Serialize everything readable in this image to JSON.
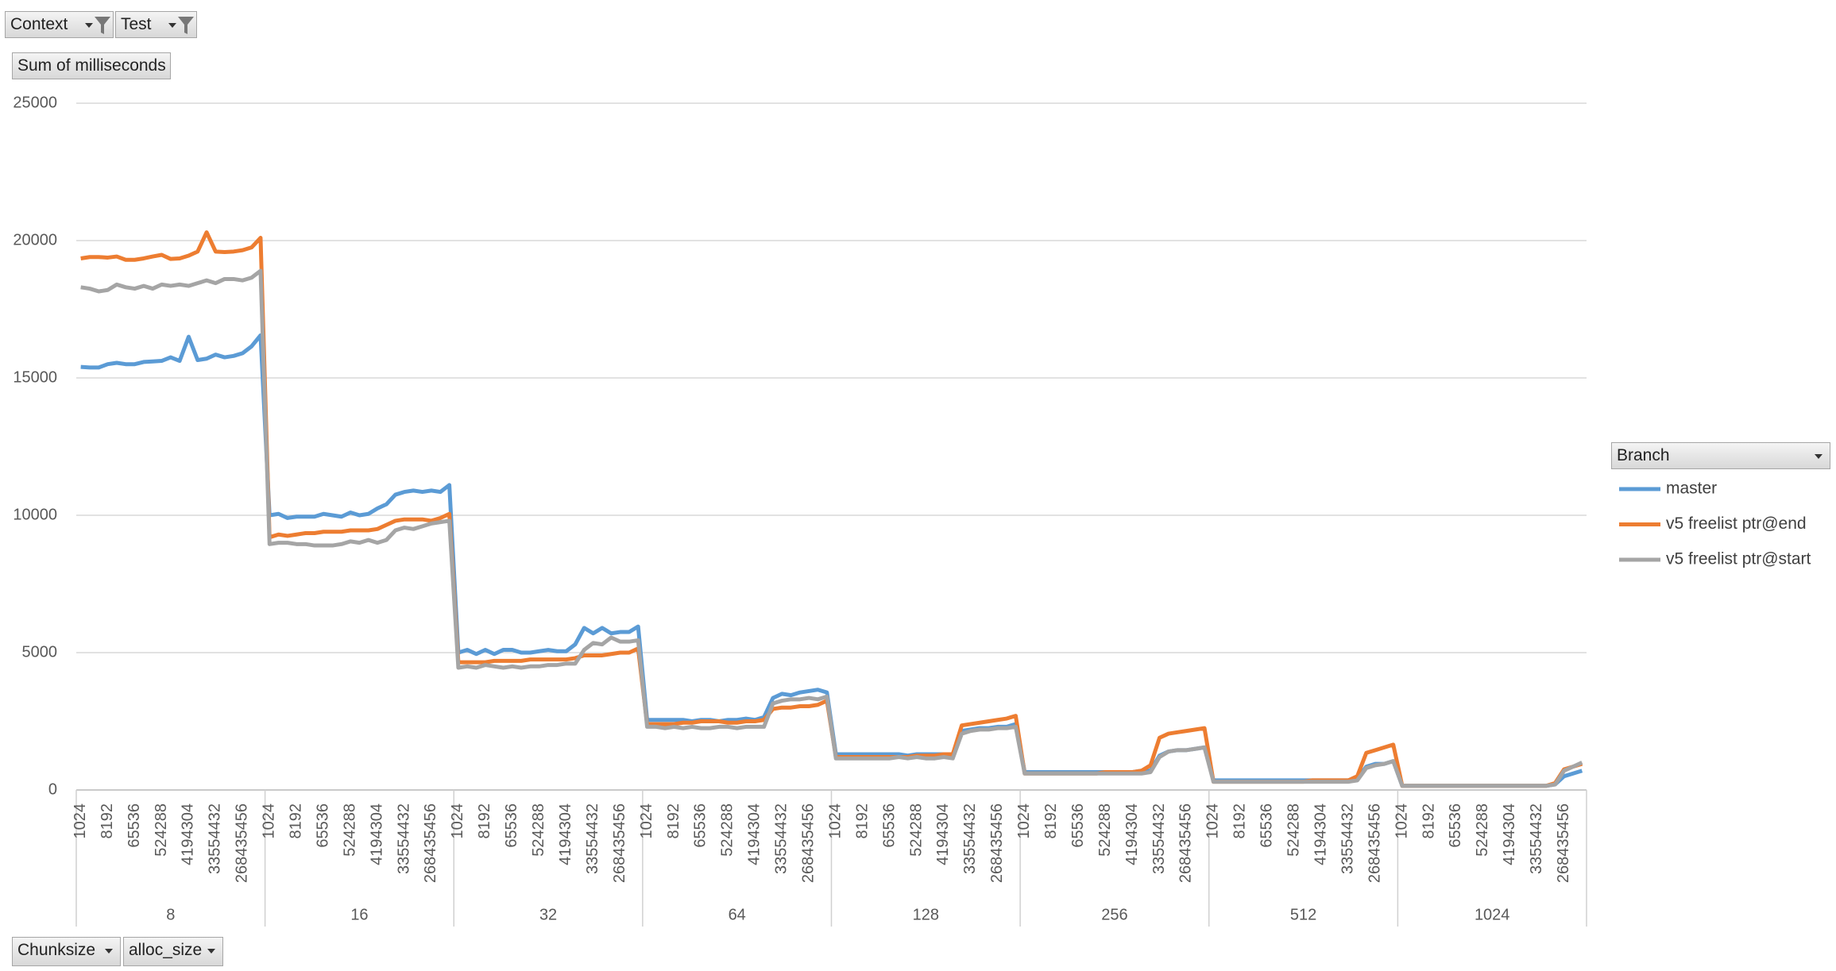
{
  "chart_data": {
    "type": "line",
    "filters": [
      "Context",
      "Test"
    ],
    "value_field": "Sum of milliseconds",
    "axis_fields": [
      "Chunksize",
      "alloc_size"
    ],
    "legend_title": "Branch",
    "groups": [
      "8",
      "16",
      "32",
      "64",
      "128",
      "256",
      "512",
      "1024"
    ],
    "alloc_sizes": [
      "1024",
      null,
      null,
      "8192",
      null,
      null,
      "65536",
      null,
      null,
      "524288",
      null,
      null,
      "4194304",
      null,
      null,
      "33554432",
      null,
      null,
      "268435456",
      null,
      null
    ],
    "ylim": [
      0,
      25000
    ],
    "yticks": [
      0,
      5000,
      10000,
      15000,
      20000,
      25000
    ],
    "grid": true,
    "legend": "right",
    "series": [
      {
        "name": "master",
        "color": "#5b9bd5",
        "values": [
          15400,
          15380,
          15380,
          15500,
          15550,
          15500,
          15500,
          15580,
          15600,
          15620,
          15750,
          15620,
          16500,
          15650,
          15700,
          15850,
          15750,
          15800,
          15900,
          16150,
          16550,
          10000,
          10050,
          9900,
          9950,
          9950,
          9950,
          10050,
          10000,
          9950,
          10100,
          10000,
          10050,
          10250,
          10400,
          10750,
          10850,
          10900,
          10850,
          10900,
          10850,
          11100,
          5000,
          5100,
          4950,
          5100,
          4950,
          5100,
          5100,
          5000,
          5000,
          5050,
          5100,
          5050,
          5050,
          5300,
          5900,
          5700,
          5900,
          5700,
          5750,
          5750,
          5950,
          2550,
          2550,
          2550,
          2550,
          2550,
          2500,
          2550,
          2550,
          2500,
          2550,
          2550,
          2600,
          2550,
          2650,
          3350,
          3500,
          3450,
          3550,
          3600,
          3650,
          3550,
          1300,
          1300,
          1300,
          1300,
          1300,
          1300,
          1300,
          1300,
          1250,
          1300,
          1300,
          1300,
          1300,
          1300,
          2150,
          2200,
          2250,
          2250,
          2300,
          2300,
          2400,
          650,
          650,
          650,
          650,
          650,
          650,
          650,
          650,
          650,
          650,
          650,
          650,
          650,
          700,
          700,
          1250,
          1400,
          1450,
          1450,
          1500,
          1550,
          350,
          350,
          350,
          350,
          350,
          350,
          350,
          350,
          350,
          350,
          350,
          350,
          350,
          350,
          350,
          350,
          400,
          850,
          950,
          950,
          1050,
          150,
          150,
          150,
          150,
          150,
          150,
          150,
          150,
          150,
          150,
          150,
          150,
          150,
          150,
          150,
          150,
          150,
          200,
          500,
          600,
          700
        ]
      },
      {
        "name": "v5 freelist ptr@end",
        "color": "#ed7d31",
        "values": [
          19350,
          19400,
          19400,
          19380,
          19420,
          19300,
          19300,
          19350,
          19420,
          19480,
          19330,
          19350,
          19450,
          19600,
          20300,
          19600,
          19580,
          19600,
          19650,
          19750,
          20100,
          9200,
          9300,
          9250,
          9300,
          9350,
          9350,
          9400,
          9400,
          9400,
          9450,
          9450,
          9450,
          9500,
          9650,
          9800,
          9850,
          9850,
          9850,
          9800,
          9900,
          10050,
          4650,
          4650,
          4650,
          4650,
          4700,
          4700,
          4700,
          4700,
          4750,
          4750,
          4750,
          4750,
          4750,
          4800,
          4900,
          4900,
          4900,
          4950,
          5000,
          5000,
          5150,
          2400,
          2400,
          2400,
          2400,
          2450,
          2450,
          2500,
          2500,
          2500,
          2450,
          2450,
          2500,
          2500,
          2550,
          2950,
          3000,
          3000,
          3050,
          3050,
          3100,
          3250,
          1200,
          1200,
          1200,
          1200,
          1200,
          1200,
          1200,
          1200,
          1200,
          1250,
          1250,
          1250,
          1300,
          1300,
          2350,
          2400,
          2450,
          2500,
          2550,
          2600,
          2700,
          600,
          600,
          600,
          600,
          600,
          600,
          600,
          600,
          600,
          650,
          650,
          650,
          650,
          700,
          900,
          1900,
          2050,
          2100,
          2150,
          2200,
          2250,
          300,
          300,
          300,
          300,
          300,
          300,
          300,
          300,
          300,
          300,
          300,
          350,
          350,
          350,
          350,
          350,
          500,
          1350,
          1450,
          1550,
          1650,
          150,
          150,
          150,
          150,
          150,
          150,
          150,
          150,
          150,
          150,
          150,
          150,
          150,
          150,
          150,
          150,
          150,
          250,
          750,
          850,
          950
        ]
      },
      {
        "name": "v5 freelist ptr@start",
        "color": "#a5a5a5",
        "values": [
          18300,
          18250,
          18150,
          18200,
          18400,
          18300,
          18250,
          18350,
          18250,
          18400,
          18350,
          18400,
          18350,
          18450,
          18550,
          18450,
          18600,
          18600,
          18550,
          18650,
          18900,
          8950,
          9000,
          9000,
          8950,
          8950,
          8900,
          8900,
          8900,
          8950,
          9050,
          9000,
          9100,
          9000,
          9100,
          9450,
          9550,
          9500,
          9600,
          9700,
          9750,
          9800,
          4450,
          4500,
          4450,
          4550,
          4500,
          4450,
          4500,
          4450,
          4500,
          4500,
          4550,
          4550,
          4600,
          4600,
          5100,
          5350,
          5300,
          5550,
          5400,
          5400,
          5450,
          2300,
          2300,
          2250,
          2300,
          2250,
          2300,
          2250,
          2250,
          2300,
          2300,
          2250,
          2300,
          2300,
          2300,
          3150,
          3250,
          3300,
          3300,
          3350,
          3300,
          3400,
          1150,
          1150,
          1150,
          1150,
          1150,
          1150,
          1150,
          1200,
          1150,
          1200,
          1150,
          1150,
          1200,
          1150,
          2050,
          2150,
          2200,
          2200,
          2250,
          2250,
          2300,
          600,
          600,
          600,
          600,
          600,
          600,
          600,
          600,
          600,
          600,
          600,
          600,
          600,
          600,
          650,
          1200,
          1400,
          1450,
          1450,
          1500,
          1550,
          300,
          300,
          300,
          300,
          300,
          300,
          300,
          300,
          300,
          300,
          300,
          300,
          300,
          300,
          300,
          300,
          350,
          800,
          900,
          950,
          1050,
          150,
          150,
          150,
          150,
          150,
          150,
          150,
          150,
          150,
          150,
          150,
          150,
          150,
          150,
          150,
          150,
          150,
          200,
          700,
          850,
          1000
        ]
      }
    ]
  }
}
